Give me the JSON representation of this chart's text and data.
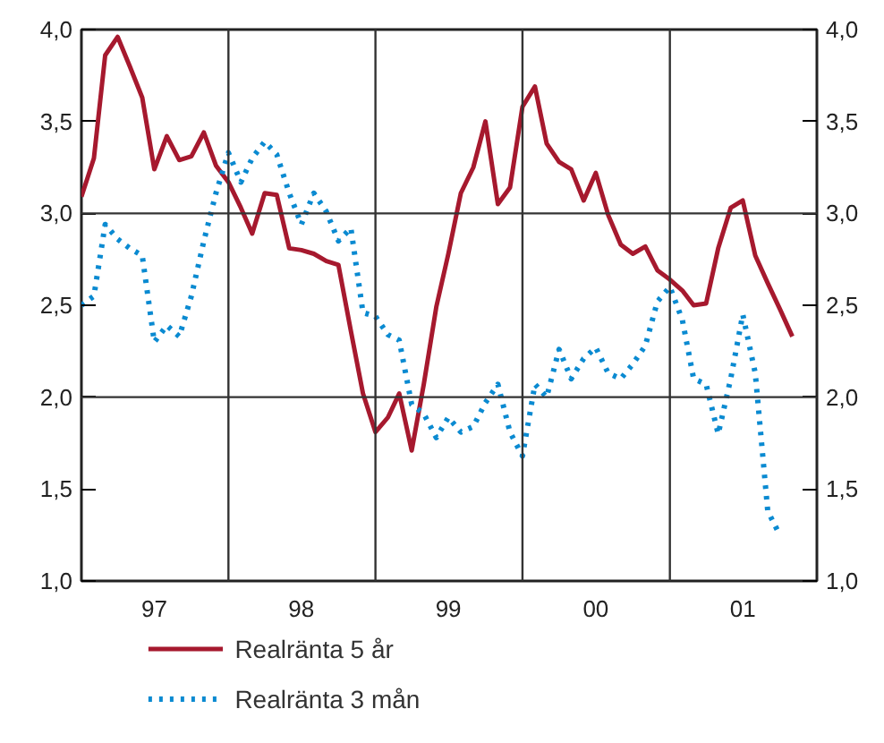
{
  "chart_data": {
    "type": "line",
    "x": [
      "1997-01",
      "1997-02",
      "1997-03",
      "1997-04",
      "1997-05",
      "1997-06",
      "1997-07",
      "1997-08",
      "1997-09",
      "1997-10",
      "1997-11",
      "1997-12",
      "1998-01",
      "1998-02",
      "1998-03",
      "1998-04",
      "1998-05",
      "1998-06",
      "1998-07",
      "1998-08",
      "1998-09",
      "1998-10",
      "1998-11",
      "1998-12",
      "1999-01",
      "1999-02",
      "1999-03",
      "1999-04",
      "1999-05",
      "1999-06",
      "1999-07",
      "1999-08",
      "1999-09",
      "1999-10",
      "1999-11",
      "1999-12",
      "2000-01",
      "2000-02",
      "2000-03",
      "2000-04",
      "2000-05",
      "2000-06",
      "2000-07",
      "2000-08",
      "2000-09",
      "2000-10",
      "2000-11",
      "2000-12",
      "2001-01",
      "2001-02",
      "2001-03",
      "2001-04",
      "2001-05",
      "2001-06",
      "2001-07",
      "2001-08",
      "2001-09",
      "2001-10",
      "2001-11"
    ],
    "series": [
      {
        "name": "Realränta 5 år",
        "color": "#a6192e",
        "line_style": "solid",
        "values": [
          3.09,
          3.3,
          3.86,
          3.96,
          3.8,
          3.63,
          3.24,
          3.42,
          3.29,
          3.31,
          3.44,
          3.26,
          3.17,
          3.03,
          2.89,
          3.11,
          3.1,
          2.81,
          2.8,
          2.78,
          2.74,
          2.72,
          2.36,
          2.02,
          1.81,
          1.89,
          2.02,
          1.71,
          2.07,
          2.49,
          2.78,
          3.11,
          3.25,
          3.5,
          3.05,
          3.14,
          3.58,
          3.69,
          3.38,
          3.28,
          3.24,
          3.07,
          3.22,
          2.99,
          2.83,
          2.78,
          2.82,
          2.69,
          2.64,
          2.58,
          2.5,
          2.51,
          2.81,
          3.03,
          3.07,
          2.77,
          2.62,
          2.48,
          2.33
        ]
      },
      {
        "name": "Realränta 3 mån",
        "color": "#0a8ad1",
        "line_style": "dotted",
        "values": [
          2.5,
          2.55,
          2.94,
          2.86,
          2.81,
          2.77,
          2.3,
          2.39,
          2.33,
          2.55,
          2.85,
          3.11,
          3.33,
          3.17,
          3.3,
          3.39,
          3.32,
          3.11,
          2.94,
          3.11,
          3.01,
          2.85,
          2.92,
          2.46,
          2.44,
          2.34,
          2.31,
          1.96,
          1.91,
          1.78,
          1.89,
          1.81,
          1.84,
          1.97,
          2.07,
          1.81,
          1.68,
          2.07,
          2.0,
          2.26,
          2.1,
          2.21,
          2.27,
          2.13,
          2.1,
          2.18,
          2.28,
          2.52,
          2.6,
          2.42,
          2.1,
          2.07,
          1.8,
          2.1,
          2.45,
          2.13,
          1.38,
          1.25,
          null
        ]
      }
    ],
    "xlim": [
      "1997-01",
      "2002-01"
    ],
    "xticks": [
      {
        "value": "1997-07",
        "label": "97"
      },
      {
        "value": "1998-07",
        "label": "98"
      },
      {
        "value": "1999-07",
        "label": "99"
      },
      {
        "value": "2000-07",
        "label": "00"
      },
      {
        "value": "2001-07",
        "label": "01"
      }
    ],
    "ylim": [
      1.0,
      4.0
    ],
    "yticks": [
      {
        "value": 1.0,
        "label": "1,0"
      },
      {
        "value": 1.5,
        "label": "1,5"
      },
      {
        "value": 2.0,
        "label": "2,0"
      },
      {
        "value": 2.5,
        "label": "2,5"
      },
      {
        "value": 3.0,
        "label": "3,0"
      },
      {
        "value": 3.5,
        "label": "3,5"
      },
      {
        "value": 4.0,
        "label": "4,0"
      }
    ],
    "y2lim": [
      1.0,
      4.0
    ],
    "y2ticks": [
      {
        "value": 1.0,
        "label": "1,0"
      },
      {
        "value": 1.5,
        "label": "1,5"
      },
      {
        "value": 2.0,
        "label": "2,0"
      },
      {
        "value": 2.5,
        "label": "2,5"
      },
      {
        "value": 3.0,
        "label": "3,0"
      },
      {
        "value": 3.5,
        "label": "3,5"
      },
      {
        "value": 4.0,
        "label": "4,0"
      }
    ],
    "ref_lines": [
      {
        "axis": "x",
        "value": "1998-01",
        "color": "#333333"
      },
      {
        "axis": "x",
        "value": "1999-01",
        "color": "#333333"
      },
      {
        "axis": "x",
        "value": "2000-01",
        "color": "#333333"
      },
      {
        "axis": "x",
        "value": "2001-01",
        "color": "#333333"
      },
      {
        "axis": "y",
        "value": 2.0,
        "color": "#333333"
      },
      {
        "axis": "y",
        "value": 3.0,
        "color": "#333333"
      }
    ],
    "grid": false,
    "legend": "bottom"
  }
}
